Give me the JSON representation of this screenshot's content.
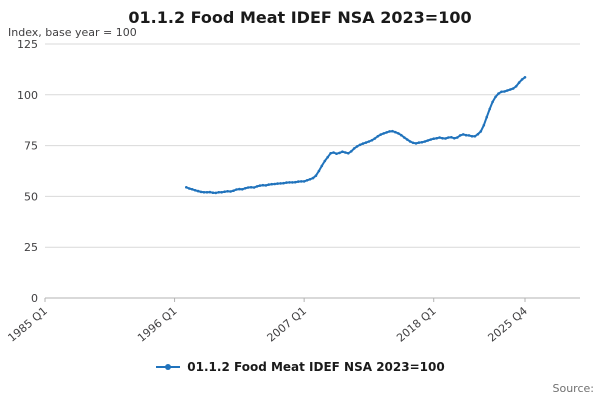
{
  "title": "01.1.2 Food Meat IDEF NSA 2023=100",
  "axis_note": "Index, base year = 100",
  "source_label": "Source:",
  "legend": {
    "label": "01.1.2 Food Meat IDEF NSA 2023=100"
  },
  "chart_data": {
    "type": "line",
    "title": "01.1.2 Food Meat IDEF NSA 2023=100",
    "subtitle": "Index, base year = 100",
    "xlabel": "",
    "ylabel": "Index, base year = 100",
    "ylim": [
      0,
      125
    ],
    "y_ticks": [
      0,
      25,
      50,
      75,
      100,
      125
    ],
    "x_tick_labels": [
      "1985 Q1",
      "1996 Q1",
      "2007 Q1",
      "2018 Q1",
      "2025 Q4"
    ],
    "x_axis_range": [
      "1985 Q1",
      "2025 Q4"
    ],
    "grid": "horizontal",
    "legend_position": "bottom",
    "colors": {
      "line": "#2073bc",
      "grid": "#d9d9d9",
      "axis": "#b3b3b3",
      "tick_text": "#414042"
    },
    "series": [
      {
        "name": "01.1.2 Food Meat IDEF NSA 2023=100",
        "color": "#2073bc",
        "start": "1997 Q1",
        "frequency": "quarterly",
        "values": [
          54.5,
          53.9,
          53.5,
          53.0,
          52.6,
          52.2,
          52.0,
          52.0,
          52.1,
          51.8,
          51.7,
          52.0,
          52.0,
          52.3,
          52.5,
          52.4,
          52.8,
          53.4,
          53.6,
          53.5,
          54.0,
          54.4,
          54.5,
          54.4,
          54.9,
          55.3,
          55.5,
          55.4,
          55.8,
          56.0,
          56.1,
          56.3,
          56.4,
          56.5,
          56.8,
          56.9,
          56.9,
          57.0,
          57.3,
          57.4,
          57.4,
          57.9,
          58.4,
          59.0,
          60.2,
          62.5,
          65.0,
          67.4,
          69.3,
          71.2,
          71.6,
          71.0,
          71.4,
          72.0,
          71.6,
          71.2,
          72.2,
          73.6,
          74.6,
          75.4,
          76.0,
          76.5,
          77.0,
          77.6,
          78.5,
          79.6,
          80.4,
          81.0,
          81.5,
          82.0,
          82.1,
          81.6,
          81.0,
          80.1,
          79.0,
          78.0,
          77.0,
          76.4,
          76.1,
          76.5,
          76.6,
          77.0,
          77.5,
          78.0,
          78.4,
          78.6,
          79.0,
          78.6,
          78.5,
          79.0,
          79.1,
          78.6,
          79.0,
          80.0,
          80.5,
          80.1,
          80.0,
          79.6,
          79.6,
          80.6,
          82.0,
          85.0,
          89.0,
          93.0,
          96.5,
          99.0,
          100.6,
          101.5,
          101.6,
          102.1,
          102.6,
          103.1,
          104.2,
          106.0,
          107.6,
          108.6
        ]
      }
    ]
  }
}
